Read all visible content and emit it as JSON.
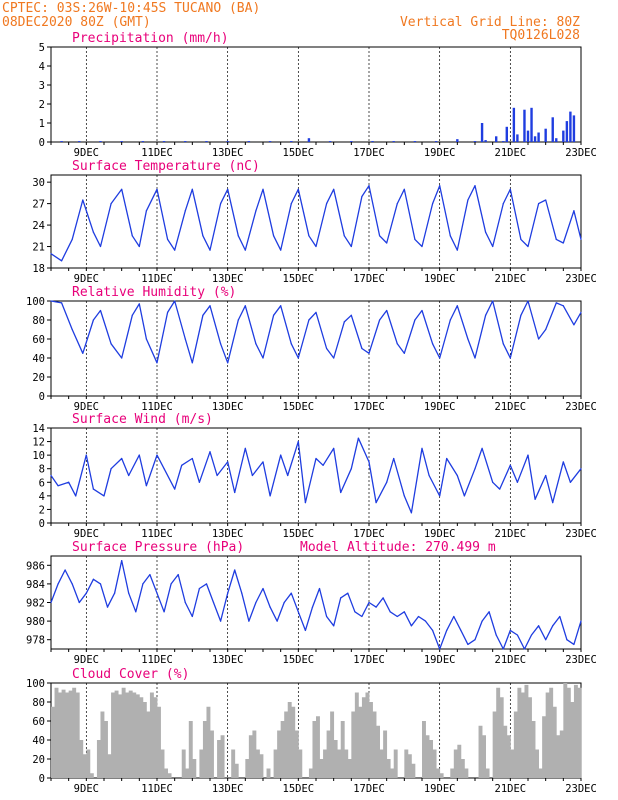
{
  "header": {
    "line1_left": "CPTEC:  03S:26W-10:45S  TUCANO (BA)",
    "line2_left": "08DEC2020 80Z (GMT)",
    "line1_right": "Vertical Grid Line: 80Z",
    "line2_right": "TQ0126L028"
  },
  "colors": {
    "header": "#f07820",
    "title": "#e8007a",
    "line": "#1f3de0",
    "bars_precip": "#1f3de0",
    "bars_cloud": "#b0b0b0"
  },
  "x_axis": {
    "date_labels": [
      "9DEC",
      "11DEC",
      "13DEC",
      "15DEC",
      "17DEC",
      "19DEC",
      "21DEC",
      "23DEC"
    ],
    "domain_days": [
      8.0,
      23.0
    ],
    "label_days": [
      9,
      11,
      13,
      15,
      17,
      19,
      21,
      23
    ]
  },
  "chart_data": [
    {
      "type": "bar",
      "title": "Precipitation (mm/h)",
      "ylim": [
        0,
        5
      ],
      "yticks": [
        "0",
        "1",
        "2",
        "3",
        "4",
        "5"
      ],
      "x_days": [
        8.3,
        8.8,
        9.4,
        10.0,
        10.6,
        11.2,
        11.8,
        12.4,
        13.0,
        13.6,
        14.2,
        14.8,
        15.3,
        15.9,
        16.5,
        17.1,
        17.7,
        18.3,
        18.9,
        19.5,
        20.0,
        20.2,
        20.3,
        20.6,
        20.8,
        20.9,
        21.1,
        21.2,
        21.4,
        21.5,
        21.6,
        21.7,
        21.8,
        22.0,
        22.2,
        22.3,
        22.5,
        22.6,
        22.7,
        22.8
      ],
      "values": [
        0.05,
        0.05,
        0.05,
        0.05,
        0.05,
        0.05,
        0.05,
        0.05,
        0.05,
        0.05,
        0.05,
        0.05,
        0.2,
        0.05,
        0.05,
        0.05,
        0.05,
        0.05,
        0.05,
        0.15,
        0.05,
        1.0,
        0.1,
        0.3,
        0.05,
        0.8,
        1.8,
        0.4,
        1.7,
        0.6,
        1.8,
        0.3,
        0.5,
        0.7,
        1.3,
        0.2,
        0.6,
        1.1,
        1.6,
        1.4
      ]
    },
    {
      "type": "line",
      "title": "Surface Temperature (nC)",
      "ylim": [
        18,
        31
      ],
      "yticks": [
        "18",
        "21",
        "24",
        "27",
        "30"
      ],
      "x_days": [
        8.0,
        8.3,
        8.6,
        8.9,
        9.2,
        9.4,
        9.7,
        10.0,
        10.3,
        10.5,
        10.7,
        11.0,
        11.3,
        11.5,
        11.8,
        12.0,
        12.3,
        12.5,
        12.8,
        13.0,
        13.3,
        13.5,
        13.8,
        14.0,
        14.3,
        14.5,
        14.8,
        15.0,
        15.3,
        15.5,
        15.8,
        16.0,
        16.3,
        16.5,
        16.8,
        17.0,
        17.3,
        17.5,
        17.8,
        18.0,
        18.3,
        18.5,
        18.8,
        19.0,
        19.3,
        19.5,
        19.8,
        20.0,
        20.3,
        20.5,
        20.8,
        21.0,
        21.3,
        21.5,
        21.8,
        22.0,
        22.3,
        22.5,
        22.8,
        23.0
      ],
      "values": [
        20,
        19,
        22,
        27.5,
        23,
        21,
        27,
        29,
        22.5,
        21,
        26,
        29,
        22,
        20.5,
        26,
        29,
        22.5,
        20.5,
        27,
        29,
        22.5,
        20.5,
        26,
        29,
        22.5,
        20.5,
        27,
        29,
        22.5,
        21,
        27,
        29,
        22.5,
        21,
        28,
        29.5,
        22.5,
        21.5,
        27,
        29,
        22,
        21,
        27,
        29.5,
        22.5,
        20.5,
        27.5,
        29.5,
        23,
        21,
        27,
        29,
        22,
        21,
        27,
        27.5,
        22,
        21.5,
        26,
        22
      ]
    },
    {
      "type": "line",
      "title": "Relative Humidity (%)",
      "ylim": [
        0,
        100
      ],
      "yticks": [
        "0",
        "20",
        "40",
        "60",
        "80",
        "100"
      ],
      "x_days": [
        8.0,
        8.3,
        8.6,
        8.9,
        9.2,
        9.4,
        9.7,
        10.0,
        10.3,
        10.5,
        10.7,
        11.0,
        11.3,
        11.5,
        11.8,
        12.0,
        12.3,
        12.5,
        12.8,
        13.0,
        13.3,
        13.5,
        13.8,
        14.0,
        14.3,
        14.5,
        14.8,
        15.0,
        15.3,
        15.5,
        15.8,
        16.0,
        16.3,
        16.5,
        16.8,
        17.0,
        17.3,
        17.5,
        17.8,
        18.0,
        18.3,
        18.5,
        18.8,
        19.0,
        19.3,
        19.5,
        19.8,
        20.0,
        20.3,
        20.5,
        20.8,
        21.0,
        21.3,
        21.5,
        21.8,
        22.0,
        22.3,
        22.5,
        22.8,
        23.0
      ],
      "values": [
        100,
        98,
        70,
        45,
        80,
        90,
        55,
        40,
        85,
        97,
        60,
        35,
        88,
        100,
        60,
        35,
        85,
        95,
        55,
        35,
        80,
        95,
        55,
        40,
        85,
        95,
        55,
        40,
        80,
        88,
        50,
        40,
        78,
        85,
        50,
        45,
        80,
        90,
        55,
        45,
        80,
        90,
        55,
        40,
        80,
        95,
        60,
        40,
        85,
        100,
        55,
        40,
        85,
        100,
        60,
        70,
        98,
        95,
        75,
        88
      ]
    },
    {
      "type": "line",
      "title": "Surface Wind (m/s)",
      "ylim": [
        0,
        14
      ],
      "yticks": [
        "0",
        "2",
        "4",
        "6",
        "8",
        "10",
        "12",
        "14"
      ],
      "x_days": [
        8.0,
        8.2,
        8.5,
        8.7,
        9.0,
        9.2,
        9.5,
        9.7,
        10.0,
        10.2,
        10.5,
        10.7,
        11.0,
        11.2,
        11.5,
        11.7,
        12.0,
        12.2,
        12.5,
        12.7,
        13.0,
        13.2,
        13.5,
        13.7,
        14.0,
        14.2,
        14.5,
        14.7,
        15.0,
        15.2,
        15.5,
        15.7,
        16.0,
        16.2,
        16.5,
        16.7,
        17.0,
        17.2,
        17.5,
        17.7,
        18.0,
        18.2,
        18.5,
        18.7,
        19.0,
        19.2,
        19.5,
        19.7,
        20.0,
        20.2,
        20.5,
        20.7,
        21.0,
        21.2,
        21.5,
        21.7,
        22.0,
        22.2,
        22.5,
        22.7,
        23.0
      ],
      "values": [
        7,
        5.5,
        6,
        4,
        10,
        5,
        4,
        8,
        9.5,
        7,
        10,
        5.5,
        10,
        8,
        5,
        8.5,
        9.5,
        6,
        10.5,
        7,
        9,
        4.5,
        11,
        7,
        9,
        4,
        10,
        7,
        12,
        3,
        9.5,
        8.5,
        11,
        4.5,
        8,
        12.5,
        9,
        3,
        6,
        9.5,
        4,
        1.5,
        11,
        7,
        4,
        9.5,
        7,
        4,
        8,
        11,
        6,
        5,
        8.5,
        6,
        10,
        3.5,
        7,
        3,
        9,
        6,
        8
      ]
    },
    {
      "type": "line",
      "title": "Surface Pressure (hPa)",
      "subtitle": "Model Altitude: 270.499 m",
      "ylim": [
        977,
        987
      ],
      "yticks": [
        "978",
        "980",
        "982",
        "984",
        "986"
      ],
      "x_days": [
        8.0,
        8.2,
        8.4,
        8.6,
        8.8,
        9.0,
        9.2,
        9.4,
        9.6,
        9.8,
        10.0,
        10.2,
        10.4,
        10.6,
        10.8,
        11.0,
        11.2,
        11.4,
        11.6,
        11.8,
        12.0,
        12.2,
        12.4,
        12.6,
        12.8,
        13.0,
        13.2,
        13.4,
        13.6,
        13.8,
        14.0,
        14.2,
        14.4,
        14.6,
        14.8,
        15.0,
        15.2,
        15.4,
        15.6,
        15.8,
        16.0,
        16.2,
        16.4,
        16.6,
        16.8,
        17.0,
        17.2,
        17.4,
        17.6,
        17.8,
        18.0,
        18.2,
        18.4,
        18.6,
        18.8,
        19.0,
        19.2,
        19.4,
        19.6,
        19.8,
        20.0,
        20.2,
        20.4,
        20.6,
        20.8,
        21.0,
        21.2,
        21.4,
        21.6,
        21.8,
        22.0,
        22.2,
        22.4,
        22.6,
        22.8,
        23.0
      ],
      "values": [
        982,
        984,
        985.5,
        984,
        982,
        983,
        984.5,
        984,
        981.5,
        983,
        986.5,
        983,
        981,
        984,
        985,
        983,
        981,
        984,
        985,
        982,
        980.5,
        983.5,
        984,
        982,
        980,
        983,
        985.5,
        983,
        980,
        982,
        983.5,
        981.5,
        980,
        982,
        983,
        981,
        979,
        981.5,
        983.5,
        980.5,
        979.5,
        982.5,
        983,
        981,
        980.5,
        982,
        981.5,
        982.5,
        981,
        980.5,
        981,
        979.5,
        980.5,
        980,
        979,
        977,
        979,
        980.5,
        979,
        977.5,
        978,
        980,
        981,
        978.5,
        977,
        979,
        978.5,
        977,
        978.5,
        979.5,
        978,
        979.5,
        980.5,
        978,
        977.5,
        980
      ]
    },
    {
      "type": "bar",
      "title": "Cloud Cover (%)",
      "ylim": [
        0,
        100
      ],
      "yticks": [
        "0",
        "20",
        "40",
        "60",
        "80",
        "100"
      ],
      "x_days": [
        8.0,
        8.1,
        8.2,
        8.3,
        8.4,
        8.5,
        8.6,
        8.7,
        8.8,
        8.9,
        9.0,
        9.1,
        9.2,
        9.3,
        9.4,
        9.5,
        9.6,
        9.7,
        9.8,
        9.9,
        10.0,
        10.1,
        10.2,
        10.3,
        10.4,
        10.5,
        10.6,
        10.7,
        10.8,
        10.9,
        11.0,
        11.1,
        11.2,
        11.3,
        11.4,
        11.5,
        11.6,
        11.7,
        11.8,
        11.9,
        12.0,
        12.1,
        12.2,
        12.3,
        12.4,
        12.5,
        12.6,
        12.7,
        12.8,
        12.9,
        13.0,
        13.1,
        13.2,
        13.3,
        13.4,
        13.5,
        13.6,
        13.7,
        13.8,
        13.9,
        14.0,
        14.1,
        14.2,
        14.3,
        14.4,
        14.5,
        14.6,
        14.7,
        14.8,
        14.9,
        15.0,
        15.1,
        15.2,
        15.3,
        15.4,
        15.5,
        15.6,
        15.7,
        15.8,
        15.9,
        16.0,
        16.1,
        16.2,
        16.3,
        16.4,
        16.5,
        16.6,
        16.7,
        16.8,
        16.9,
        17.0,
        17.1,
        17.2,
        17.3,
        17.4,
        17.5,
        17.6,
        17.7,
        17.8,
        17.9,
        18.0,
        18.1,
        18.2,
        18.3,
        18.4,
        18.5,
        18.6,
        18.7,
        18.8,
        18.9,
        19.0,
        19.1,
        19.2,
        19.3,
        19.4,
        19.5,
        19.6,
        19.7,
        19.8,
        19.9,
        20.0,
        20.1,
        20.2,
        20.3,
        20.4,
        20.5,
        20.6,
        20.7,
        20.8,
        20.9,
        21.0,
        21.1,
        21.2,
        21.3,
        21.4,
        21.5,
        21.6,
        21.7,
        21.8,
        21.9,
        22.0,
        22.1,
        22.2,
        22.3,
        22.4,
        22.5,
        22.6,
        22.7,
        22.8,
        22.9
      ],
      "values": [
        75,
        95,
        90,
        93,
        90,
        92,
        95,
        90,
        40,
        25,
        30,
        5,
        0,
        40,
        70,
        60,
        25,
        90,
        92,
        88,
        95,
        90,
        92,
        90,
        88,
        85,
        80,
        70,
        90,
        85,
        75,
        30,
        10,
        5,
        0,
        0,
        0,
        30,
        10,
        60,
        20,
        0,
        30,
        60,
        75,
        50,
        0,
        40,
        45,
        0,
        0,
        30,
        15,
        0,
        0,
        20,
        45,
        50,
        30,
        25,
        0,
        10,
        0,
        30,
        50,
        60,
        70,
        80,
        75,
        50,
        30,
        0,
        0,
        10,
        60,
        65,
        20,
        30,
        50,
        70,
        40,
        30,
        60,
        30,
        20,
        70,
        90,
        75,
        85,
        90,
        80,
        70,
        55,
        30,
        50,
        20,
        10,
        30,
        0,
        0,
        30,
        25,
        15,
        0,
        0,
        60,
        45,
        40,
        30,
        10,
        5,
        0,
        0,
        10,
        30,
        35,
        20,
        10,
        0,
        0,
        0,
        55,
        45,
        10,
        0,
        70,
        95,
        85,
        55,
        45,
        30,
        70,
        95,
        90,
        98,
        85,
        60,
        30,
        10,
        65,
        90,
        95,
        75,
        45,
        50,
        100,
        95,
        80,
        98,
        95
      ]
    }
  ]
}
